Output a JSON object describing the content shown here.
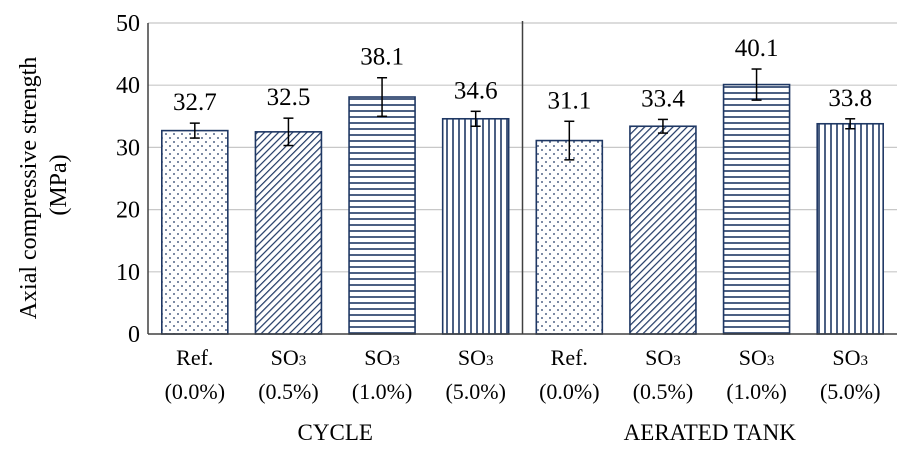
{
  "chart_data": {
    "type": "bar",
    "ylabel_line1": "Axial compressive strength",
    "ylabel_line2": "(MPa)",
    "ylim": [
      0,
      50
    ],
    "yticks": [
      "0",
      "10",
      "20",
      "30",
      "40",
      "50"
    ],
    "grid": true,
    "groups": [
      {
        "name": "CYCLE",
        "start": 0,
        "end": 4
      },
      {
        "name": "AERATED TANK",
        "start": 4,
        "end": 8
      }
    ],
    "categories": [
      {
        "line1": "Ref.",
        "line1_sub": "",
        "line2": "(0.0%)",
        "value": 32.7,
        "value_label": "32.7",
        "err": 1.2,
        "pattern": "dots"
      },
      {
        "line1": "SO",
        "line1_sub": "3",
        "line2": "(0.5%)",
        "value": 32.5,
        "value_label": "32.5",
        "err": 2.2,
        "pattern": "diag"
      },
      {
        "line1": "SO",
        "line1_sub": "3",
        "line2": "(1.0%)",
        "value": 38.1,
        "value_label": "38.1",
        "err": 3.1,
        "pattern": "hlines"
      },
      {
        "line1": "SO",
        "line1_sub": "3",
        "line2": "(5.0%)",
        "value": 34.6,
        "value_label": "34.6",
        "err": 1.2,
        "pattern": "vlines"
      },
      {
        "line1": "Ref.",
        "line1_sub": "",
        "line2": "(0.0%)",
        "value": 31.1,
        "value_label": "31.1",
        "err": 3.1,
        "pattern": "dots"
      },
      {
        "line1": "SO",
        "line1_sub": "3",
        "line2": "(0.5%)",
        "value": 33.4,
        "value_label": "33.4",
        "err": 1.1,
        "pattern": "diag"
      },
      {
        "line1": "SO",
        "line1_sub": "3",
        "line2": "(1.0%)",
        "value": 40.1,
        "value_label": "40.1",
        "err": 2.5,
        "pattern": "hlines"
      },
      {
        "line1": "SO",
        "line1_sub": "3",
        "line2": "(5.0%)",
        "value": 33.8,
        "value_label": "33.8",
        "err": 0.8,
        "pattern": "vlines"
      }
    ],
    "colors": {
      "bar_stroke": "#1f3864",
      "pattern": "#1f3864",
      "grid": "#c8c8c8",
      "axis": "#404040",
      "error": "#000000"
    }
  }
}
